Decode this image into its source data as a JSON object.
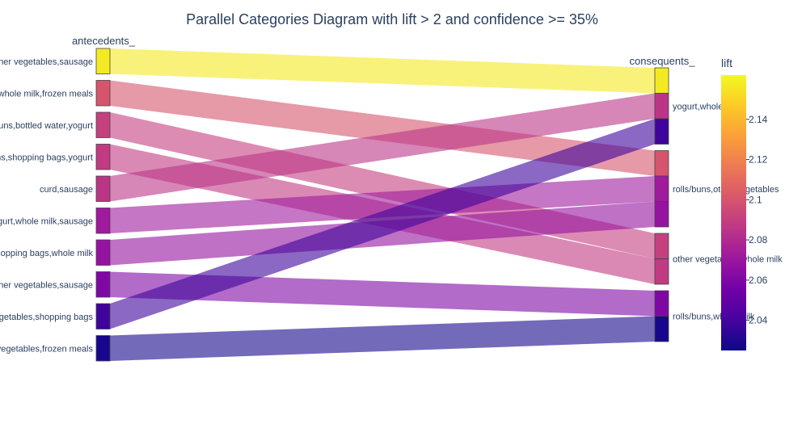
{
  "chart_data": {
    "type": "parallel_categories",
    "title": "Parallel Categories Diagram with lift > 2 and confidence >= 35%",
    "dimensions": [
      {
        "label": "antecedents_",
        "categories": [
          "other vegetables,sausage",
          "whole milk,frozen meals",
          "rolls/buns,bottled water,yogurt",
          "rolls/buns,shopping bags,yogurt",
          "curd,sausage",
          "yogurt,whole milk,sausage",
          "shopping bags,whole milk",
          "other vegetables,sausage",
          "vegetables,shopping bags",
          "vegetables,frozen meals"
        ]
      },
      {
        "label": "consequents_",
        "categories": [
          "yogurt,whole milk",
          "rolls/buns,other vegetables",
          "other vegetables,whole milk",
          "rolls/buns,whole milk"
        ]
      }
    ],
    "ribbons": [
      {
        "from": 0,
        "to": 0,
        "lift": 2.157
      },
      {
        "from": 1,
        "to": 1,
        "lift": 2.1
      },
      {
        "from": 2,
        "to": 2,
        "lift": 2.09
      },
      {
        "from": 3,
        "to": 2,
        "lift": 2.088
      },
      {
        "from": 4,
        "to": 0,
        "lift": 2.085
      },
      {
        "from": 5,
        "to": 1,
        "lift": 2.072
      },
      {
        "from": 6,
        "to": 1,
        "lift": 2.068
      },
      {
        "from": 7,
        "to": 3,
        "lift": 2.06
      },
      {
        "from": 8,
        "to": 0,
        "lift": 2.038
      },
      {
        "from": 9,
        "to": 3,
        "lift": 2.028
      }
    ],
    "colorbar": {
      "title": "lift",
      "range": [
        2.025,
        2.162
      ],
      "ticks": [
        2.04,
        2.06,
        2.08,
        2.1,
        2.12,
        2.14
      ],
      "colorscale": [
        "#0d0887",
        "#46039f",
        "#7201a8",
        "#9c179e",
        "#bd3786",
        "#d8576b",
        "#ed7953",
        "#fb9f3a",
        "#fdca26",
        "#f0f921"
      ]
    }
  }
}
